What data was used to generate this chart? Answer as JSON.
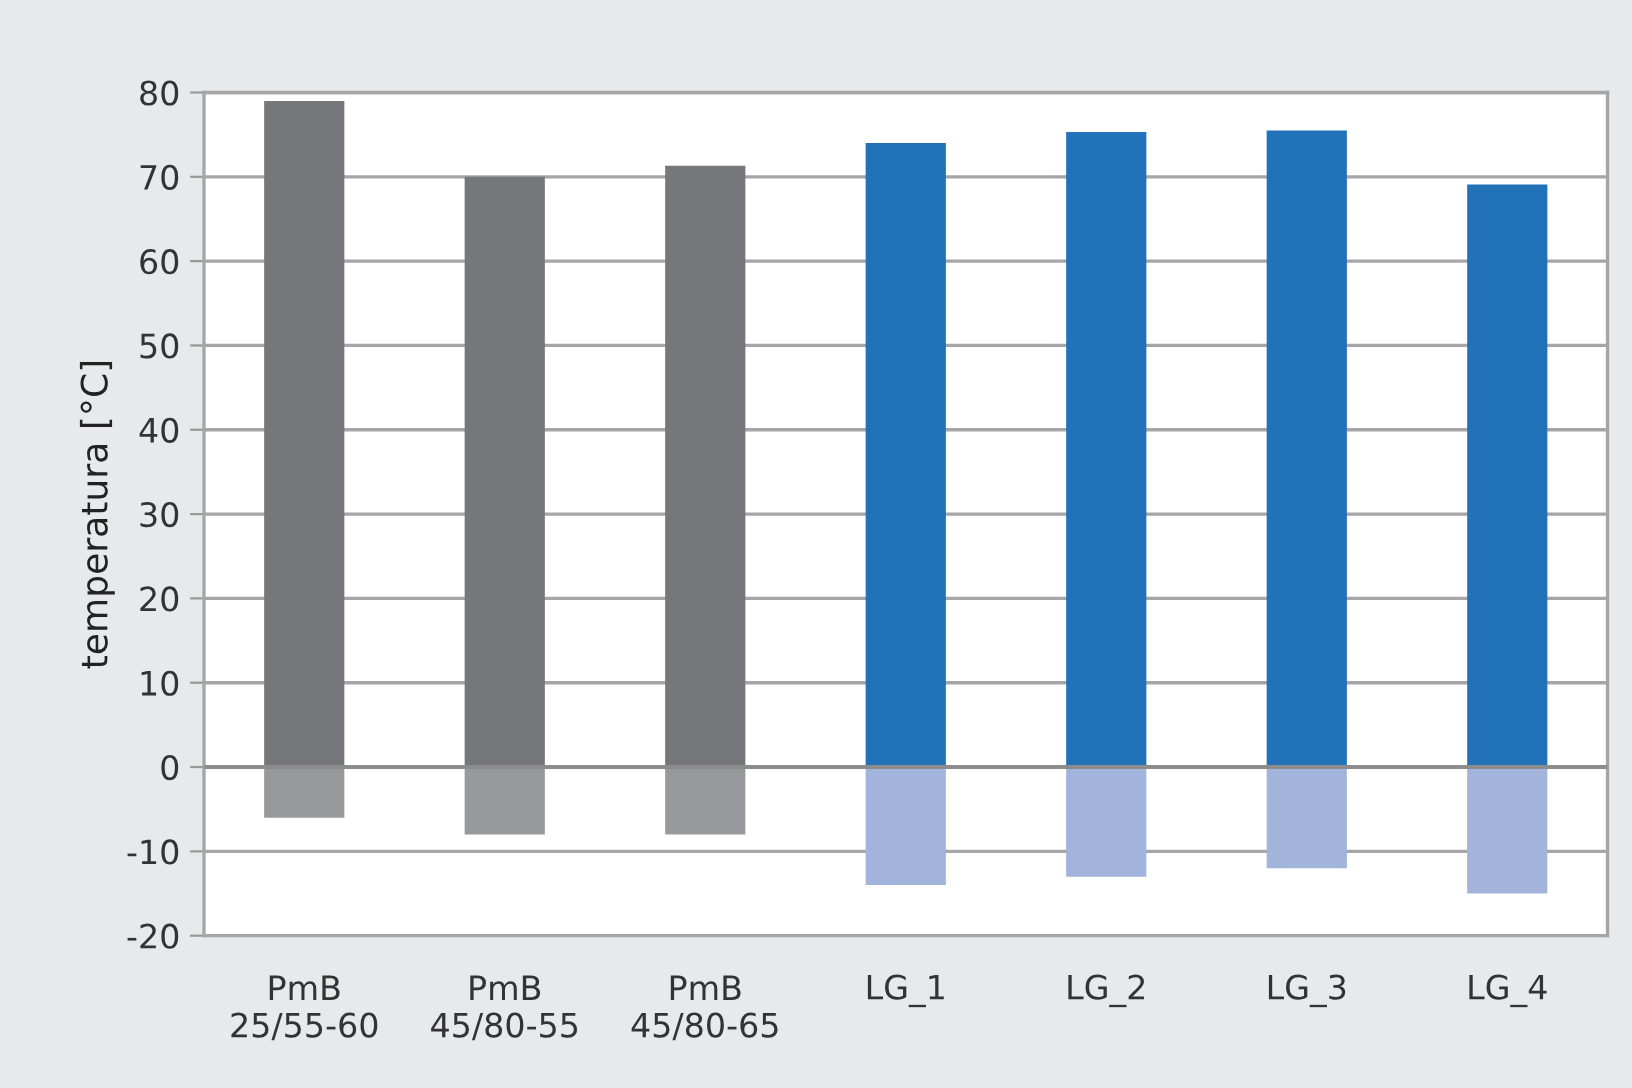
{
  "chart_data": {
    "type": "bar",
    "ylabel": "temperatura [°C]",
    "categories": [
      "PmB\n25/55-60",
      "PmB\n45/80-55",
      "PmB\n45/80-65",
      "LG_1",
      "LG_2",
      "LG_3",
      "LG_4"
    ],
    "stacked": true,
    "series": [
      {
        "colors": [
          "#76777b",
          "#76777b",
          "#76777b",
          "#2172b9",
          "#2172b9",
          "#2172b9",
          "#2172b9"
        ],
        "values": [
          79,
          70,
          71.3,
          74,
          75.3,
          75.5,
          69.1
        ]
      },
      {
        "colors": [
          "#98999d",
          "#98999d",
          "#98999d",
          "#a2b4dc",
          "#a2b4dc",
          "#a2b4dc",
          "#a2b4dc"
        ],
        "values": [
          -6,
          -8,
          -8,
          -14,
          -13,
          -12,
          -15
        ]
      }
    ],
    "ylim": [
      -20,
      80
    ],
    "yticks": [
      -20,
      -10,
      0,
      10,
      20,
      30,
      40,
      50,
      60,
      70,
      80
    ],
    "grid": "y"
  }
}
